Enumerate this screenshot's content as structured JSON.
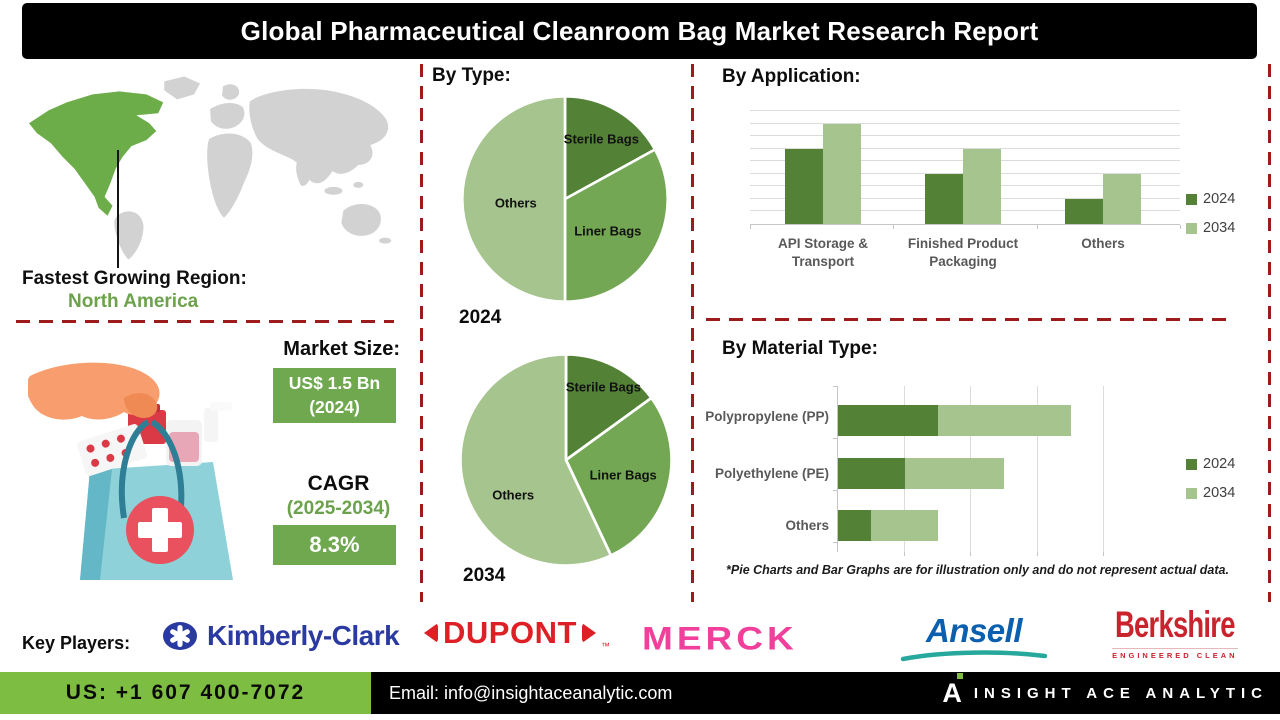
{
  "title": "Global Pharmaceutical Cleanroom Bag Market Research Report",
  "map": {
    "region_label": "Fastest Growing Region:",
    "region_value": "North America",
    "highlight_color": "#6cad4a",
    "base_color": "#d2d2d2"
  },
  "market": {
    "size_label": "Market Size:",
    "size_value": "US$ 1.5 Bn",
    "size_year": "(2024)",
    "cagr_label": "CAGR",
    "cagr_period": "(2025-2034)",
    "cagr_value": "8.3%",
    "box_color": "#6fa84e"
  },
  "sections": {
    "by_type": "By Type:",
    "by_application": "By Application:",
    "by_material": "By Material Type:"
  },
  "chart_data": [
    {
      "type": "pie",
      "group": "By Type:",
      "year_label": "2024",
      "labels": [
        "Sterile Bags",
        "Liner Bags",
        "Others"
      ],
      "values_percent": [
        17,
        33,
        50
      ],
      "colors": [
        "#538236",
        "#73a754",
        "#a6c48e"
      ],
      "start": "12 o'clock, clockwise"
    },
    {
      "type": "pie",
      "group": "By Type:",
      "year_label": "2034",
      "labels": [
        "Sterile Bags",
        "Liner Bags",
        "Others"
      ],
      "values_percent": [
        15,
        28,
        57
      ],
      "colors": [
        "#538236",
        "#73a754",
        "#a6c48e"
      ],
      "start": "12 o'clock, clockwise"
    },
    {
      "type": "bar",
      "title": "By Application:",
      "categories": [
        "API Storage & Transport",
        "Finished Product Packaging",
        "Others"
      ],
      "series": [
        {
          "name": "2024",
          "color": "#538236",
          "values": [
            6,
            4,
            2
          ]
        },
        {
          "name": "2034",
          "color": "#a6c48e",
          "values": [
            8,
            6,
            4
          ]
        }
      ],
      "ylim": [
        0,
        9
      ],
      "grid": true,
      "legend_position": "right"
    },
    {
      "type": "bar-horizontal-stacked",
      "title": "By Material Type:",
      "categories": [
        "Polypropylene (PP)",
        "Polyethylene (PE)",
        "Others"
      ],
      "series": [
        {
          "name": "2024",
          "color": "#538236",
          "values": [
            1.5,
            1.0,
            0.5
          ]
        },
        {
          "name": "2034",
          "color": "#a6c48e",
          "values": [
            2.0,
            1.5,
            1.0
          ]
        }
      ],
      "xlim": [
        0,
        4.5
      ],
      "grid": true,
      "legend_position": "right"
    }
  ],
  "footnote": "*Pie Charts and Bar Graphs are for illustration only and do not represent actual data.",
  "key_players": {
    "label": "Key Players:",
    "companies": [
      {
        "name": "Kimberly-Clark",
        "color": "#2b3aa0"
      },
      {
        "name": "DUPONT",
        "tm": "TM",
        "color": "#df1f26"
      },
      {
        "name": "MERCK",
        "color": "#f0409b"
      },
      {
        "name": "Ansell",
        "color": "#0a5fae"
      },
      {
        "name": "Berkshire",
        "tagline": "ENGINEERED CLEAN",
        "color": "#c9242e"
      }
    ]
  },
  "footer": {
    "phone": "US: +1 607 400-7072",
    "email": "Email: info@insightaceanalytic.com",
    "brand_letter": "A",
    "brand": "INSIGHT ACE ANALYTIC",
    "green": "#7dbd41"
  }
}
